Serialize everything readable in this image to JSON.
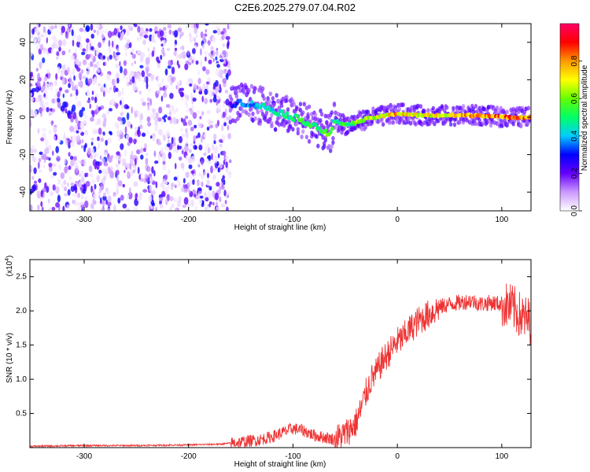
{
  "title": "C2E6.2025.279.07.04.R02",
  "chart_data": [
    {
      "type": "heatmap",
      "xlabel": "Height of straight line (km)",
      "ylabel": "Frequency (Hz)",
      "xlim": [
        -352,
        128
      ],
      "ylim": [
        -50,
        50
      ],
      "xticks": [
        -300,
        -200,
        -100,
        0,
        100
      ],
      "yticks": [
        -40,
        -20,
        0,
        20,
        40
      ],
      "colorbar": {
        "label": "Normalized spectral amplitude",
        "range": [
          0,
          1
        ],
        "ticks": [
          0.0,
          0.2,
          0.4,
          0.6,
          0.8
        ],
        "colors": [
          "#ffffff",
          "#cc99ff",
          "#6600ff",
          "#0000ff",
          "#00ccff",
          "#00ff66",
          "#66ff00",
          "#ffff00",
          "#ff9900",
          "#ff0000",
          "#ff0066"
        ]
      },
      "ridge": {
        "x": [
          -160,
          -150,
          -140,
          -130,
          -120,
          -110,
          -100,
          -90,
          -80,
          -70,
          -65,
          -60,
          -50,
          -40,
          -30,
          -20,
          -10,
          0,
          20,
          40,
          60,
          80,
          100,
          128
        ],
        "y": [
          7,
          8,
          7,
          6,
          4,
          2,
          0,
          -2,
          -4,
          -8,
          -10,
          -2,
          -4,
          -3,
          -1,
          0,
          1,
          2,
          1,
          1,
          1,
          1,
          0,
          0
        ],
        "amplitude": [
          0.25,
          0.35,
          0.4,
          0.45,
          0.45,
          0.5,
          0.5,
          0.55,
          0.55,
          0.6,
          0.55,
          0.5,
          0.55,
          0.6,
          0.65,
          0.7,
          0.75,
          0.8,
          0.7,
          0.75,
          0.8,
          0.8,
          0.85,
          0.8
        ]
      },
      "noise_region": [
        -352,
        -160
      ]
    },
    {
      "type": "line",
      "xlabel": "Height of straight line (km)",
      "ylabel": "SNR (10 * v/v)",
      "y_multiplier": "(x10^4)",
      "xlim": [
        -352,
        128
      ],
      "ylim": [
        0,
        2.75
      ],
      "xticks": [
        -300,
        -200,
        -100,
        0,
        100
      ],
      "yticks": [
        0.5,
        1.0,
        1.5,
        2.0,
        2.5
      ],
      "ytick_labels": [
        "0.5",
        "1.0",
        "1.5",
        "2.0",
        "2.5"
      ],
      "series": [
        {
          "color": "#ee3333",
          "x": [
            -352,
            -300,
            -250,
            -200,
            -170,
            -150,
            -130,
            -120,
            -110,
            -100,
            -90,
            -80,
            -70,
            -60,
            -50,
            -40,
            -35,
            -30,
            -25,
            -20,
            -15,
            -10,
            -5,
            0,
            5,
            10,
            20,
            30,
            40,
            50,
            60,
            70,
            80,
            90,
            100,
            110,
            120,
            128
          ],
          "y": [
            0.02,
            0.03,
            0.03,
            0.04,
            0.05,
            0.08,
            0.12,
            0.16,
            0.22,
            0.28,
            0.25,
            0.18,
            0.15,
            0.12,
            0.2,
            0.35,
            0.55,
            0.8,
            1.0,
            1.1,
            1.25,
            1.35,
            1.45,
            1.55,
            1.6,
            1.7,
            1.85,
            1.95,
            2.05,
            2.1,
            2.12,
            2.15,
            2.1,
            2.12,
            2.1,
            2.05,
            1.9,
            1.85
          ]
        }
      ]
    }
  ]
}
